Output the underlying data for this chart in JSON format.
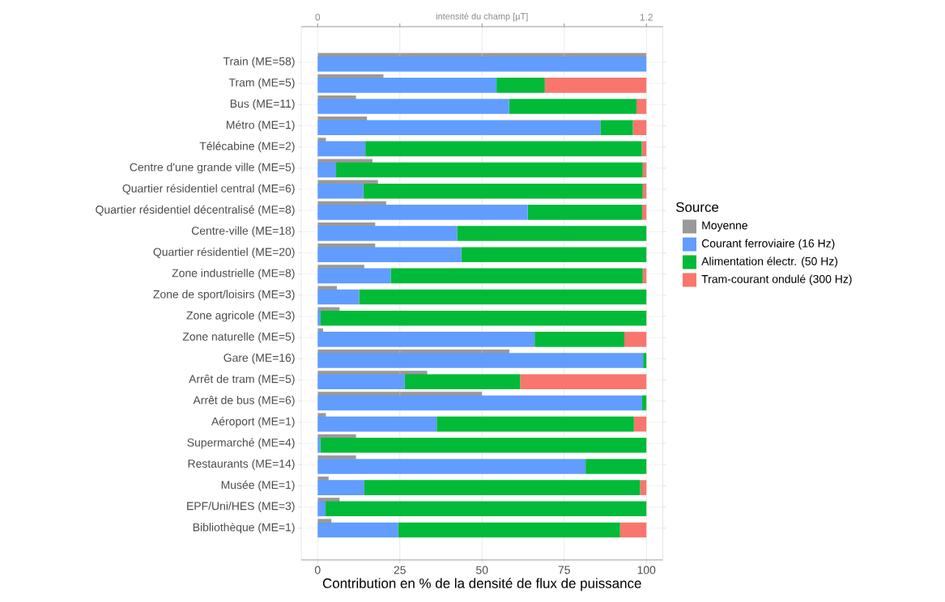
{
  "chart_data": [
    {
      "type": "bar",
      "orientation": "horizontal",
      "stacked": true,
      "xlabel": "Contribution en % de la densité de flux de puissance",
      "legend_title": "Source",
      "legend": "right",
      "grid": true,
      "categories": [
        "Train (ME=58)",
        "Tram (ME=5)",
        "Bus (ME=11)",
        "Métro (ME=1)",
        "Télécabine (ME=2)",
        "Centre d'une grande ville (ME=5)",
        "Quartier résidentiel central (ME=6)",
        "Quartier résidentiel décentralisé (ME=8)",
        "Centre-ville (ME=18)",
        "Quartier résidentiel (ME=20)",
        "Zone industrielle (ME=8)",
        "Zone de sport/loisirs (ME=3)",
        "Zone agricole (ME=3)",
        "Zone naturelle (ME=5)",
        "Gare (ME=16)",
        "Arrêt de tram (ME=5)",
        "Arrêt de bus (ME=6)",
        "Aéroport (ME=1)",
        "Supermarché (ME=4)",
        "Restaurants (ME=14)",
        "Musée (ME=1)",
        "EPF/Uni/HES (ME=3)",
        "Bibliothèque (ME=1)"
      ],
      "xlim": [
        -5,
        105
      ],
      "xticks": [
        0,
        25,
        50,
        75,
        100
      ],
      "series": [
        {
          "name": "Courant ferroviaire (16 Hz)",
          "color": "#619cff",
          "values": [
            100,
            54.4,
            58.2,
            86.0,
            14.5,
            5.6,
            13.9,
            63.9,
            42.4,
            43.7,
            22.2,
            12.6,
            0.9,
            66.0,
            99.0,
            26.5,
            98.7,
            36.2,
            0.8,
            81.5,
            14.2,
            2.4,
            24.5
          ]
        },
        {
          "name": "Alimentation électr. (50 Hz)",
          "color": "#00ba38",
          "values": [
            null,
            14.7,
            38.8,
            9.9,
            84.1,
            93.3,
            85.0,
            34.8,
            57.6,
            56.3,
            76.7,
            87.4,
            99.1,
            27.3,
            1.0,
            35.1,
            1.3,
            60.0,
            99.2,
            18.5,
            83.9,
            97.6,
            67.5
          ]
        },
        {
          "name": "Tram-courant ondulé (300 Hz)",
          "color": "#f8766d",
          "values": [
            null,
            30.9,
            3.0,
            4.1,
            1.4,
            1.1,
            1.1,
            1.3,
            null,
            null,
            1.1,
            null,
            null,
            6.7,
            null,
            38.4,
            null,
            3.8,
            null,
            null,
            1.9,
            null,
            8.0
          ]
        }
      ]
    },
    {
      "type": "bar",
      "orientation": "horizontal",
      "tick_labels": "x",
      "grid": "x",
      "x2label": "intensité du champ [µT]",
      "categories": [
        null,
        null,
        null,
        null,
        null,
        null,
        null,
        null,
        null,
        null,
        null,
        null,
        null,
        null,
        null,
        null,
        null,
        null,
        null,
        null,
        null,
        null,
        null
      ],
      "x2lim": [
        -0.06,
        1.26
      ],
      "x2ticks": [
        0,
        {
          "value": 0.3,
          "label": null
        },
        {
          "value": 0.6,
          "label": null
        },
        {
          "value": 0.9,
          "label": null
        },
        1.2
      ],
      "series": [
        {
          "name": "Moyenne",
          "color": "#999999",
          "axis": "x2",
          "values": [
            1.2,
            0.24,
            0.14,
            0.18,
            0.03,
            0.2,
            0.22,
            0.25,
            0.21,
            0.21,
            0.17,
            0.07,
            0.08,
            0.02,
            0.7,
            0.4,
            0.6,
            0.03,
            0.14,
            0.14,
            0.04,
            0.08,
            0.05
          ]
        }
      ]
    }
  ]
}
